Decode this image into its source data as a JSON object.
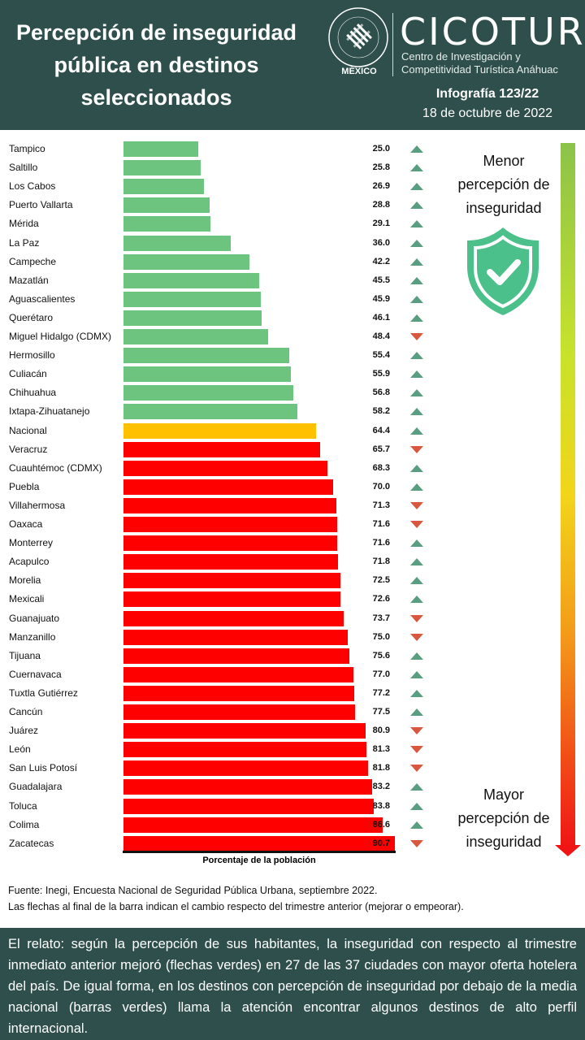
{
  "header": {
    "title": "Percepción de inseguridad pública en destinos seleccionados",
    "university_seal": "Universidad Anáhuac · Vince in Bono Malum",
    "university_country": "MÉXICO",
    "brand": "CICOTUR",
    "brand_subtitle_1": "Centro de Investigación y",
    "brand_subtitle_2": "Competitividad Turística Anáhuac",
    "infographic": "Infografía 123/22",
    "date": "18 de octubre de 2022"
  },
  "chart_data": {
    "type": "bar",
    "orientation": "horizontal",
    "xlabel": "Porcentaje de la población",
    "xlim": [
      0,
      91
    ],
    "colors": {
      "below_national": "#6cc47e",
      "national": "#ffc000",
      "above_national": "#ff0000",
      "arrow_up": "#5a9e82",
      "arrow_down": "#d9573f"
    },
    "categories": [
      "Tampico",
      "Saltillo",
      "Los Cabos",
      "Puerto Vallarta",
      "Mérida",
      "La Paz",
      "Campeche",
      "Mazatlán",
      "Aguascalientes",
      "Querétaro",
      "Miguel Hidalgo (CDMX)",
      "Hermosillo",
      "Culiacán",
      "Chihuahua",
      "Ixtapa-Zihuatanejo",
      "Nacional",
      "Veracruz",
      "Cuauhtémoc (CDMX)",
      "Puebla",
      "Villahermosa",
      "Oaxaca",
      "Monterrey",
      "Acapulco",
      "Morelia",
      "Mexicali",
      "Guanajuato",
      "Manzanillo",
      "Tijuana",
      "Cuernavaca",
      "Tuxtla Gutiérrez",
      "Cancún",
      "Juárez",
      "León",
      "San Luis Potosí",
      "Guadalajara",
      "Toluca",
      "Colima",
      "Zacatecas"
    ],
    "values": [
      25.0,
      25.8,
      26.9,
      28.8,
      29.1,
      36.0,
      42.2,
      45.5,
      45.9,
      46.1,
      48.4,
      55.4,
      55.9,
      56.8,
      58.2,
      64.4,
      65.7,
      68.3,
      70.0,
      71.3,
      71.6,
      71.6,
      71.8,
      72.5,
      72.6,
      73.7,
      75.0,
      75.6,
      77.0,
      77.2,
      77.5,
      80.9,
      81.3,
      81.8,
      83.2,
      83.8,
      86.6,
      90.7
    ],
    "labels": [
      "25.0",
      "25.8",
      "26.9",
      "28.8",
      "29.1",
      "36.0",
      "42.2",
      "45.5",
      "45.9",
      "46.1",
      "48.4",
      "55.4",
      "55.9",
      "56.8",
      "58.2",
      "64.4",
      "65.7",
      "68.3",
      "70.0",
      "71.3",
      "71.6",
      "71.6",
      "71.8",
      "72.5",
      "72.6",
      "73.7",
      "75.0",
      "75.6",
      "77.0",
      "77.2",
      "77.5",
      "80.9",
      "81.3",
      "81.8",
      "83.2",
      "83.8",
      "86.6",
      "90.7"
    ],
    "trend": [
      "up",
      "up",
      "up",
      "up",
      "up",
      "up",
      "up",
      "up",
      "up",
      "up",
      "down",
      "up",
      "up",
      "up",
      "up",
      "up",
      "down",
      "up",
      "up",
      "down",
      "down",
      "up",
      "up",
      "up",
      "up",
      "down",
      "down",
      "up",
      "up",
      "up",
      "up",
      "down",
      "down",
      "down",
      "up",
      "up",
      "up",
      "down"
    ]
  },
  "legend": {
    "top_1": "Menor",
    "top_2": "percepción de",
    "top_3": "inseguridad",
    "bottom_1": "Mayor",
    "bottom_2": "percepción de",
    "bottom_3": "inseguridad",
    "icon": "shield-check-icon"
  },
  "source": {
    "line1": "Fuente: Inegi,  Encuesta Nacional de Seguridad Pública Urbana, septiembre 2022.",
    "line2": "Las flechas al final de la barra indican  el cambio respecto del trimestre anterior (mejorar o empeorar)."
  },
  "story": "El relato: según la percepción de sus habitantes, la inseguridad con respecto al trimestre inmediato anterior mejoró (flechas verdes) en 27 de las 37 ciudades con mayor oferta hotelera del país. De igual forma, en los destinos con percepción de inseguridad por debajo de la media nacional (barras verdes) llama la atención encontrar algunos destinos de alto perfil internacional."
}
